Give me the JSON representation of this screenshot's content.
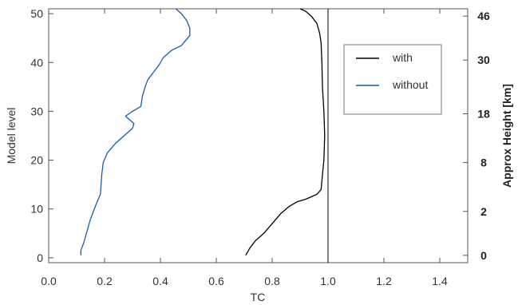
{
  "chart_data": {
    "type": "line",
    "title": "",
    "xlabel": "TC",
    "ylabel": "Model level",
    "y2label": "Approx Height [km]",
    "xlim": [
      0.0,
      1.5
    ],
    "ylim": [
      -1,
      51
    ],
    "xticks": [
      "0.0",
      "0.2",
      "0.4",
      "0.6",
      "0.8",
      "1.0",
      "1.2",
      "1.4"
    ],
    "yticks": [
      "0",
      "10",
      "20",
      "30",
      "40",
      "50"
    ],
    "y2ticks": [
      {
        "level": 0.5,
        "label": "0"
      },
      {
        "level": 9.5,
        "label": "2"
      },
      {
        "level": 19.5,
        "label": "8"
      },
      {
        "level": 29.5,
        "label": "18"
      },
      {
        "level": 40.5,
        "label": "30"
      },
      {
        "level": 49.5,
        "label": "46"
      }
    ],
    "grid": false,
    "legend_position": "top-right",
    "reference_line_x": 1.0,
    "series": [
      {
        "name": "with",
        "color": "#000000",
        "points": [
          [
            0.705,
            0.5
          ],
          [
            0.72,
            2
          ],
          [
            0.74,
            3.5
          ],
          [
            0.77,
            5
          ],
          [
            0.8,
            7
          ],
          [
            0.83,
            9
          ],
          [
            0.86,
            10.5
          ],
          [
            0.89,
            11.5
          ],
          [
            0.92,
            12
          ],
          [
            0.96,
            13
          ],
          [
            0.975,
            14
          ],
          [
            0.98,
            17
          ],
          [
            0.985,
            20
          ],
          [
            0.988,
            25
          ],
          [
            0.985,
            30
          ],
          [
            0.98,
            35
          ],
          [
            0.978,
            40
          ],
          [
            0.975,
            44
          ],
          [
            0.97,
            46
          ],
          [
            0.96,
            48
          ],
          [
            0.94,
            49.5
          ],
          [
            0.92,
            50.5
          ],
          [
            0.9,
            51
          ]
        ]
      },
      {
        "name": "without",
        "color": "#1f5aa6",
        "points": [
          [
            0.115,
            0.5
          ],
          [
            0.115,
            1.5
          ],
          [
            0.125,
            3
          ],
          [
            0.135,
            5
          ],
          [
            0.15,
            8
          ],
          [
            0.17,
            11
          ],
          [
            0.185,
            13
          ],
          [
            0.19,
            17
          ],
          [
            0.195,
            19.5
          ],
          [
            0.21,
            21.5
          ],
          [
            0.24,
            23.5
          ],
          [
            0.27,
            25
          ],
          [
            0.3,
            26.5
          ],
          [
            0.305,
            27.5
          ],
          [
            0.285,
            28.5
          ],
          [
            0.275,
            29
          ],
          [
            0.3,
            30
          ],
          [
            0.33,
            31
          ],
          [
            0.335,
            33
          ],
          [
            0.345,
            35
          ],
          [
            0.355,
            36.5
          ],
          [
            0.375,
            38
          ],
          [
            0.395,
            39.5
          ],
          [
            0.41,
            41
          ],
          [
            0.44,
            42.5
          ],
          [
            0.475,
            43.5
          ],
          [
            0.49,
            44.5
          ],
          [
            0.505,
            45.5
          ],
          [
            0.505,
            47
          ],
          [
            0.495,
            48.5
          ],
          [
            0.475,
            50
          ],
          [
            0.455,
            51
          ]
        ]
      }
    ]
  }
}
